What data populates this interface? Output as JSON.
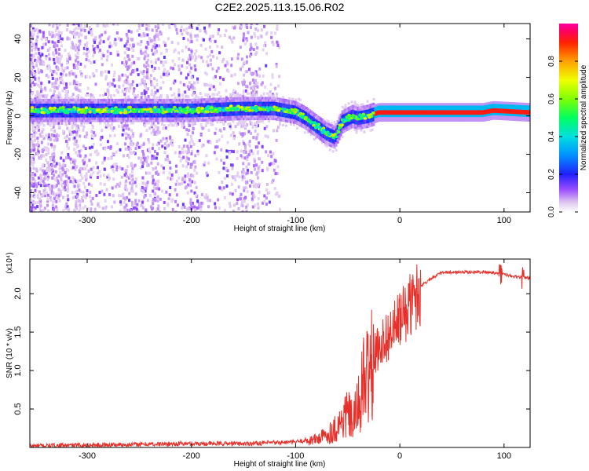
{
  "chart_data": [
    {
      "type": "heatmap",
      "title": "C2E2.2025.113.15.06.R02",
      "xlabel": "Height of straight line (km)",
      "ylabel": "Frequency (Hz)",
      "xlim": [
        -355,
        125
      ],
      "ylim": [
        -50,
        48
      ],
      "xticks": [
        -300,
        -200,
        -100,
        0,
        100
      ],
      "yticks": [
        -40,
        -20,
        0,
        20,
        40
      ],
      "colorbar": {
        "label": "Normalized spectral amplitude",
        "range": [
          0,
          1
        ],
        "ticks": [
          0.0,
          0.2,
          0.4,
          0.6,
          0.8
        ],
        "placement": "right"
      },
      "ridge": [
        {
          "x": -350,
          "f": 3
        },
        {
          "x": -300,
          "f": 3
        },
        {
          "x": -250,
          "f": 3
        },
        {
          "x": -200,
          "f": 3
        },
        {
          "x": -150,
          "f": 4
        },
        {
          "x": -120,
          "f": 4
        },
        {
          "x": -100,
          "f": 2
        },
        {
          "x": -90,
          "f": -1
        },
        {
          "x": -80,
          "f": -5
        },
        {
          "x": -70,
          "f": -9
        },
        {
          "x": -62,
          "f": -11
        },
        {
          "x": -55,
          "f": -3
        },
        {
          "x": -45,
          "f": 0
        },
        {
          "x": -40,
          "f": -1
        },
        {
          "x": -30,
          "f": 0
        },
        {
          "x": -20,
          "f": 2
        },
        {
          "x": 0,
          "f": 2
        },
        {
          "x": 40,
          "f": 2
        },
        {
          "x": 80,
          "f": 2
        },
        {
          "x": 90,
          "f": 3
        },
        {
          "x": 125,
          "f": 2
        }
      ],
      "grid": false
    },
    {
      "type": "line",
      "xlabel": "Height of straight line (km)",
      "ylabel": "SNR (10 * v/v)",
      "yscale_label": "(x10⁴)",
      "xlim": [
        -355,
        125
      ],
      "ylim": [
        0,
        2.45
      ],
      "xticks": [
        -300,
        -200,
        -100,
        0,
        100
      ],
      "yticks": [
        0.5,
        1.0,
        1.5,
        2.0
      ],
      "ytick_labels": [
        "0.5",
        "1.0",
        "1.5",
        "2.0"
      ],
      "color": "#e8302a",
      "series_envelope": [
        {
          "x": -355,
          "y": 0.02
        },
        {
          "x": -300,
          "y": 0.03
        },
        {
          "x": -250,
          "y": 0.04
        },
        {
          "x": -200,
          "y": 0.05
        },
        {
          "x": -150,
          "y": 0.05
        },
        {
          "x": -100,
          "y": 0.07
        },
        {
          "x": -80,
          "y": 0.12
        },
        {
          "x": -70,
          "y": 0.18
        },
        {
          "x": -60,
          "y": 0.3
        },
        {
          "x": -50,
          "y": 0.5
        },
        {
          "x": -45,
          "y": 0.35
        },
        {
          "x": -40,
          "y": 0.6
        },
        {
          "x": -35,
          "y": 0.9
        },
        {
          "x": -30,
          "y": 1.1
        },
        {
          "x": -25,
          "y": 1.2
        },
        {
          "x": -20,
          "y": 1.35
        },
        {
          "x": -15,
          "y": 1.45
        },
        {
          "x": -10,
          "y": 1.5
        },
        {
          "x": -5,
          "y": 1.6
        },
        {
          "x": 0,
          "y": 1.7
        },
        {
          "x": 5,
          "y": 1.8
        },
        {
          "x": 10,
          "y": 1.9
        },
        {
          "x": 20,
          "y": 2.1
        },
        {
          "x": 30,
          "y": 2.2
        },
        {
          "x": 40,
          "y": 2.27
        },
        {
          "x": 60,
          "y": 2.28
        },
        {
          "x": 80,
          "y": 2.28
        },
        {
          "x": 95,
          "y": 2.27
        },
        {
          "x": 100,
          "y": 2.25
        },
        {
          "x": 110,
          "y": 2.22
        },
        {
          "x": 125,
          "y": 2.2
        }
      ],
      "grid": false
    }
  ]
}
